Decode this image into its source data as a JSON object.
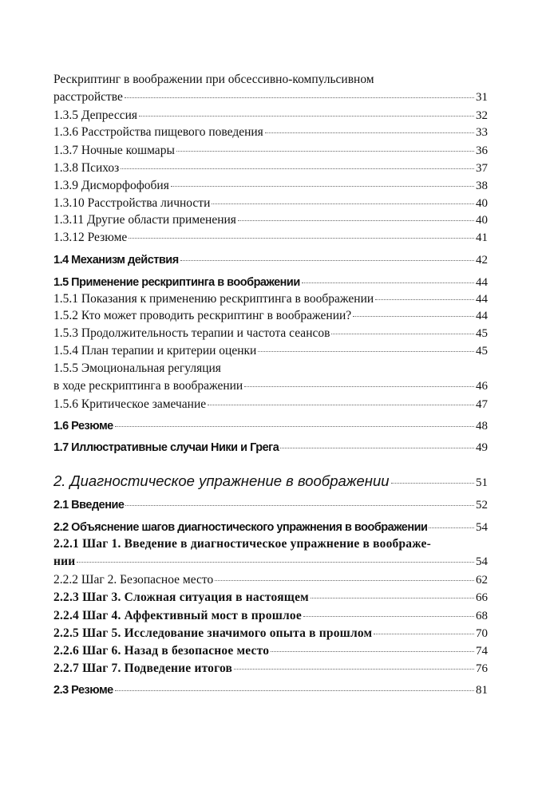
{
  "toc": {
    "entries": [
      {
        "lead": "Рескриптинг в воображении при обсессивно-компульсивном",
        "text": "расстройстве",
        "page": "31",
        "style": "regular"
      },
      {
        "text": "1.3.5 Депрессия",
        "page": "32",
        "style": "regular"
      },
      {
        "text": "1.3.6 Расстройства пищевого поведения",
        "page": "33",
        "style": "regular"
      },
      {
        "text": "1.3.7 Ночные кошмары",
        "page": "36",
        "style": "regular"
      },
      {
        "text": "1.3.8 Психоз",
        "page": "37",
        "style": "regular"
      },
      {
        "text": "1.3.9 Дисморфофобия",
        "page": "38",
        "style": "regular"
      },
      {
        "text": "1.3.10 Расстройства личности",
        "page": "40",
        "style": "regular"
      },
      {
        "text": "1.3.11 Другие области применения",
        "page": "40",
        "style": "regular"
      },
      {
        "text": "1.3.12 Резюме",
        "page": "41",
        "style": "regular"
      },
      {
        "text": "1.4 Механизм действия",
        "page": "42",
        "style": "bold-sans"
      },
      {
        "text": "1.5 Применение рескриптинга в воображении",
        "page": "44",
        "style": "bold-sans"
      },
      {
        "text": "1.5.1 Показания к применению рескриптинга в воображении",
        "page": "44",
        "style": "regular"
      },
      {
        "text": "1.5.2 Кто может проводить рескриптинг в воображении?",
        "page": "44",
        "style": "regular"
      },
      {
        "text": "1.5.3 Продолжительность терапии и частота сеансов",
        "page": "45",
        "style": "regular"
      },
      {
        "text": "1.5.4 План терапии и критерии оценки",
        "page": "45",
        "style": "regular"
      },
      {
        "lead": "1.5.5 Эмоциональная регуляция",
        "text": "в ходе рескриптинга в воображении",
        "page": "46",
        "style": "regular"
      },
      {
        "text": "1.5.6 Критическое замечание",
        "page": "47",
        "style": "regular"
      },
      {
        "text": "1.6 Резюме",
        "page": "48",
        "style": "bold-sans"
      },
      {
        "text": "1.7 Иллюстративные случаи Ники и Грега",
        "page": "49",
        "style": "bold-sans"
      },
      {
        "text": "2. Диагностическое упражнение в воображении",
        "page": "51",
        "style": "italic-heading"
      },
      {
        "text": "2.1 Введение",
        "page": "52",
        "style": "bold-sans"
      },
      {
        "text": "2.2 Объяснение шагов диагностического упражнения в воображении",
        "page": "54",
        "style": "bold-sans"
      },
      {
        "lead": "2.2.1 Шаг 1. Введение в диагностическое упражнение в воображе-",
        "text": "нии",
        "page": "54",
        "style": "bold-serif"
      },
      {
        "text": "2.2.2 Шаг 2. Безопасное место",
        "page": "62",
        "style": "regular"
      },
      {
        "text": "2.2.3 Шаг 3. Сложная ситуация в настоящем",
        "page": "66",
        "style": "bold-serif"
      },
      {
        "text": "2.2.4 Шаг 4. Аффективный мост в прошлое",
        "page": "68",
        "style": "bold-serif"
      },
      {
        "text": "2.2.5 Шаг 5. Исследование значимого опыта в прошлом",
        "page": "70",
        "style": "bold-serif"
      },
      {
        "text": "2.2.6 Шаг 6. Назад в безопасное место",
        "page": "74",
        "style": "bold-serif"
      },
      {
        "text": "2.2.7 Шаг 7. Подведение итогов",
        "page": "76",
        "style": "bold-serif"
      },
      {
        "text": "2.3 Резюме",
        "page": "81",
        "style": "bold-sans"
      }
    ]
  }
}
